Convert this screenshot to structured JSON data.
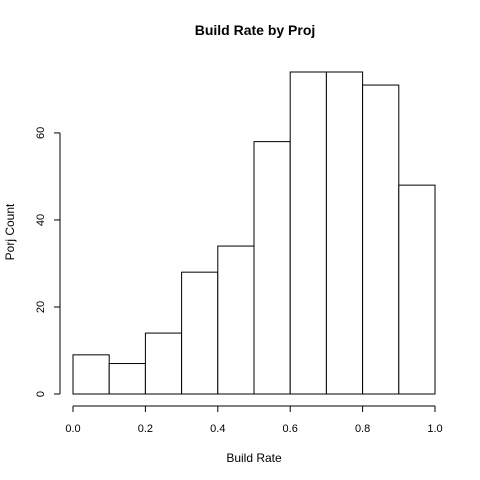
{
  "chart_data": {
    "type": "bar",
    "title": "Build Rate by Proj",
    "xlabel": "Build Rate",
    "ylabel": "Porj Count",
    "bins": [
      {
        "x0": 0.0,
        "x1": 0.1,
        "value": 9
      },
      {
        "x0": 0.1,
        "x1": 0.2,
        "value": 7
      },
      {
        "x0": 0.2,
        "x1": 0.3,
        "value": 14
      },
      {
        "x0": 0.3,
        "x1": 0.4,
        "value": 28
      },
      {
        "x0": 0.4,
        "x1": 0.5,
        "value": 34
      },
      {
        "x0": 0.5,
        "x1": 0.6,
        "value": 58
      },
      {
        "x0": 0.6,
        "x1": 0.7,
        "value": 74
      },
      {
        "x0": 0.7,
        "x1": 0.8,
        "value": 74
      },
      {
        "x0": 0.8,
        "x1": 0.9,
        "value": 71
      },
      {
        "x0": 0.9,
        "x1": 1.0,
        "value": 48
      }
    ],
    "xlim": [
      0,
      1
    ],
    "ylim": [
      0,
      74
    ],
    "xticks": [
      {
        "value": 0.0,
        "label": "0.0"
      },
      {
        "value": 0.2,
        "label": "0.2"
      },
      {
        "value": 0.4,
        "label": "0.4"
      },
      {
        "value": 0.6,
        "label": "0.6"
      },
      {
        "value": 0.8,
        "label": "0.8"
      },
      {
        "value": 1.0,
        "label": "1.0"
      }
    ],
    "yticks": [
      {
        "value": 0,
        "label": "0"
      },
      {
        "value": 20,
        "label": "20"
      },
      {
        "value": 40,
        "label": "40"
      },
      {
        "value": 60,
        "label": "60"
      }
    ],
    "grid": false,
    "bar_fill": "#ffffff",
    "bar_stroke": "#000000"
  }
}
